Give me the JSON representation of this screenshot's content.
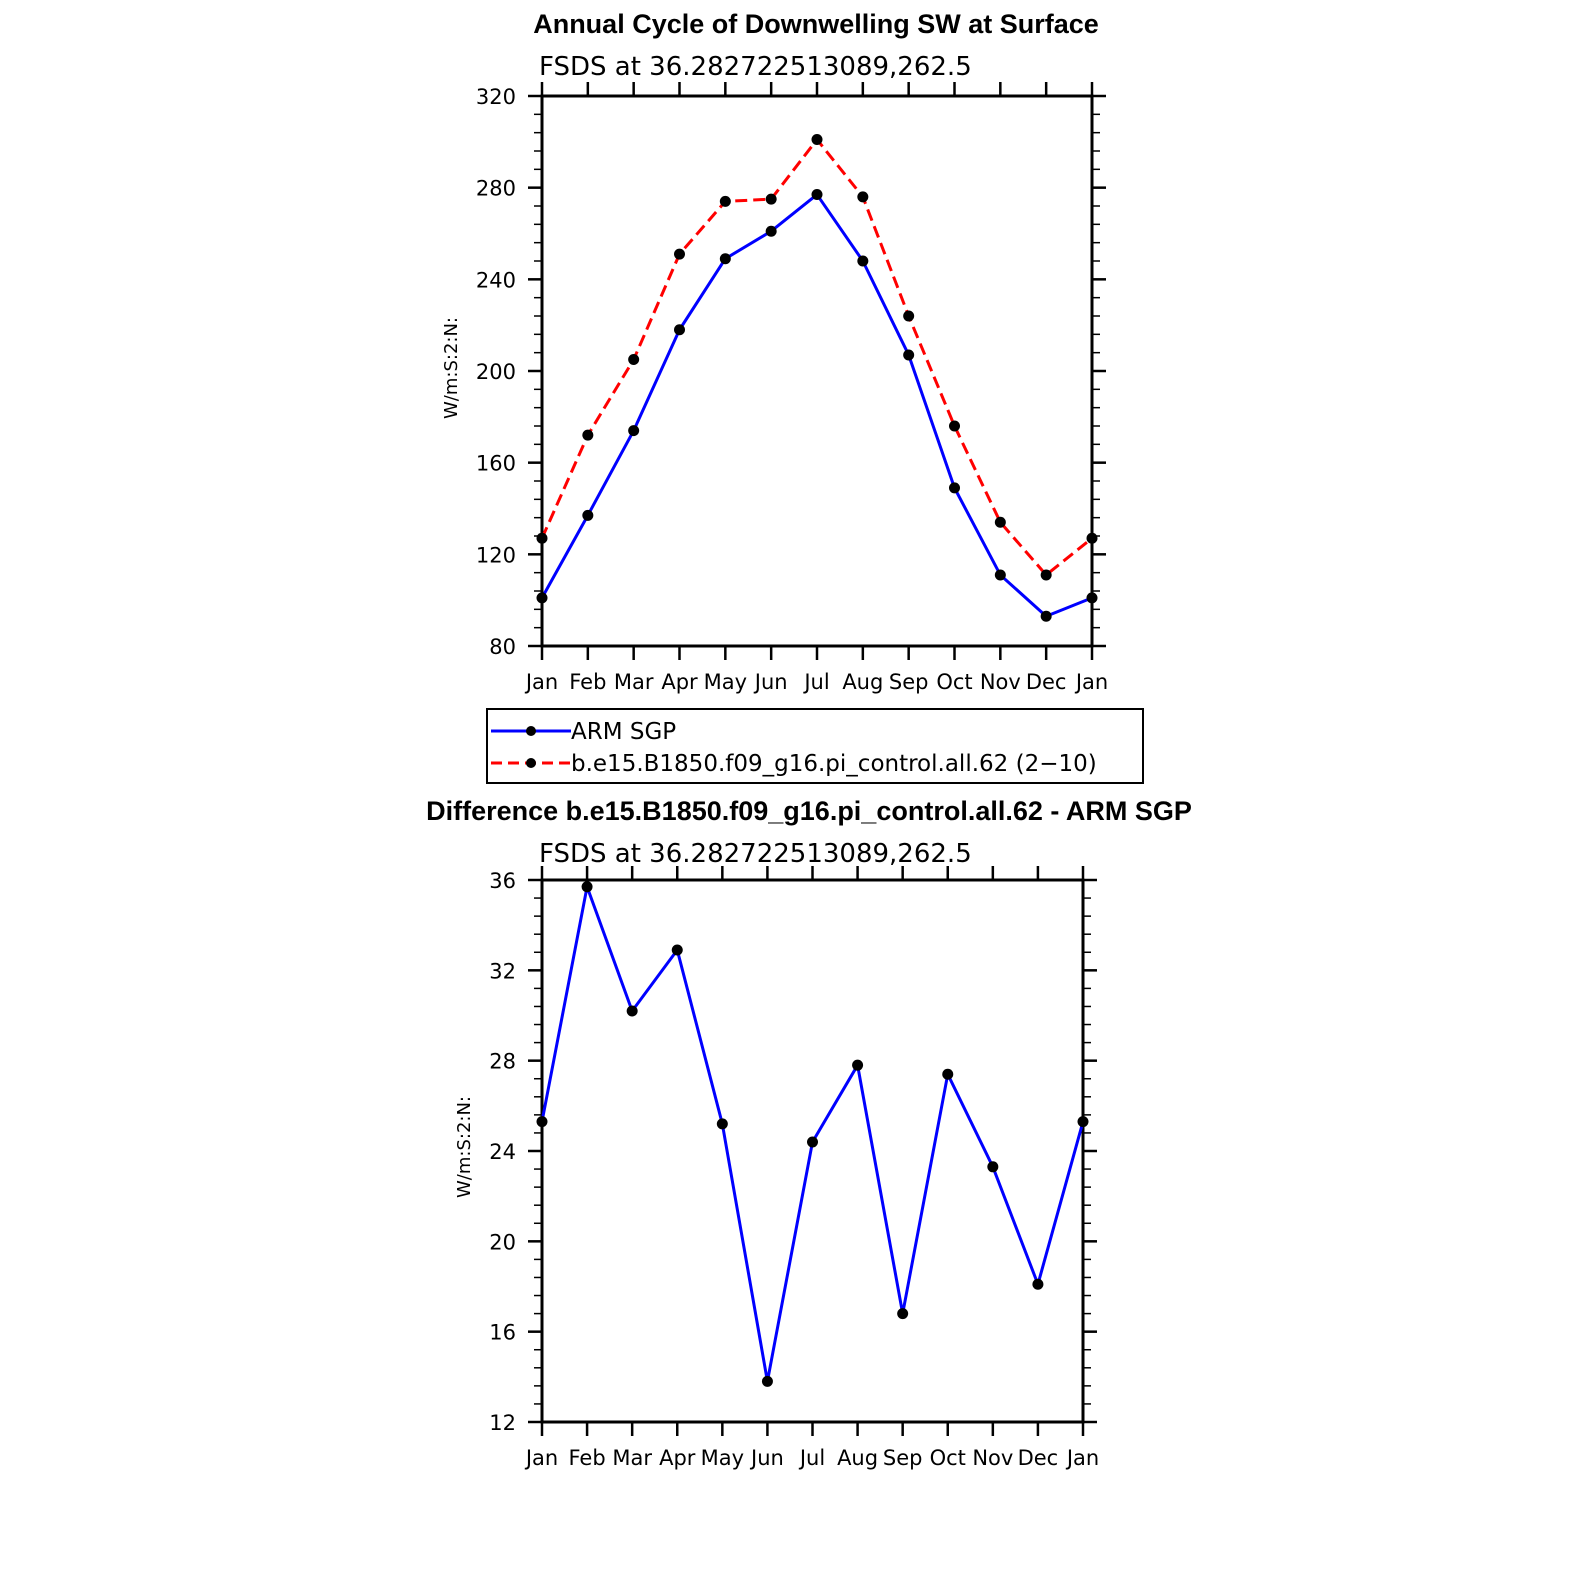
{
  "chart_data": [
    {
      "type": "line",
      "title": "Annual Cycle of Downwelling SW at Surface",
      "subtitle": "FSDS at 36.282722513089,262.5",
      "ylabel": "W/m:S:2:N:",
      "xlabel": "",
      "categories": [
        "Jan",
        "Feb",
        "Mar",
        "Apr",
        "May",
        "Jun",
        "Jul",
        "Aug",
        "Sep",
        "Oct",
        "Nov",
        "Dec",
        "Jan"
      ],
      "ylim": [
        80,
        320
      ],
      "yticks": [
        "80",
        "120",
        "160",
        "200",
        "240",
        "280",
        "320"
      ],
      "grid": false,
      "legend_position": "bottom",
      "series": [
        {
          "name": "ARM SGP",
          "color": "#0000ff",
          "dash": "solid",
          "values": [
            101,
            137,
            174,
            218,
            249,
            261,
            277,
            248,
            207,
            149,
            111,
            93,
            101
          ]
        },
        {
          "name": "b.e15.B1850.f09_g16.pi_control.all.62 (2−10)",
          "color": "#ff0000",
          "dash": "dashed",
          "values": [
            127,
            172,
            205,
            251,
            274,
            275,
            301,
            276,
            224,
            176,
            134,
            111,
            127
          ]
        }
      ]
    },
    {
      "type": "line",
      "title": "Difference b.e15.B1850.f09_g16.pi_control.all.62 - ARM SGP",
      "subtitle": "FSDS at 36.282722513089,262.5",
      "ylabel": "W/m:S:2:N:",
      "xlabel": "",
      "categories": [
        "Jan",
        "Feb",
        "Mar",
        "Apr",
        "May",
        "Jun",
        "Jul",
        "Aug",
        "Sep",
        "Oct",
        "Nov",
        "Dec",
        "Jan"
      ],
      "ylim": [
        12,
        36
      ],
      "yticks": [
        "12",
        "16",
        "20",
        "24",
        "28",
        "32",
        "36"
      ],
      "grid": false,
      "series": [
        {
          "name": "",
          "color": "#0000ff",
          "dash": "solid",
          "values": [
            25.3,
            35.7,
            30.2,
            32.9,
            25.2,
            13.8,
            24.4,
            27.8,
            16.8,
            27.4,
            23.3,
            18.1,
            25.3
          ]
        }
      ]
    }
  ]
}
